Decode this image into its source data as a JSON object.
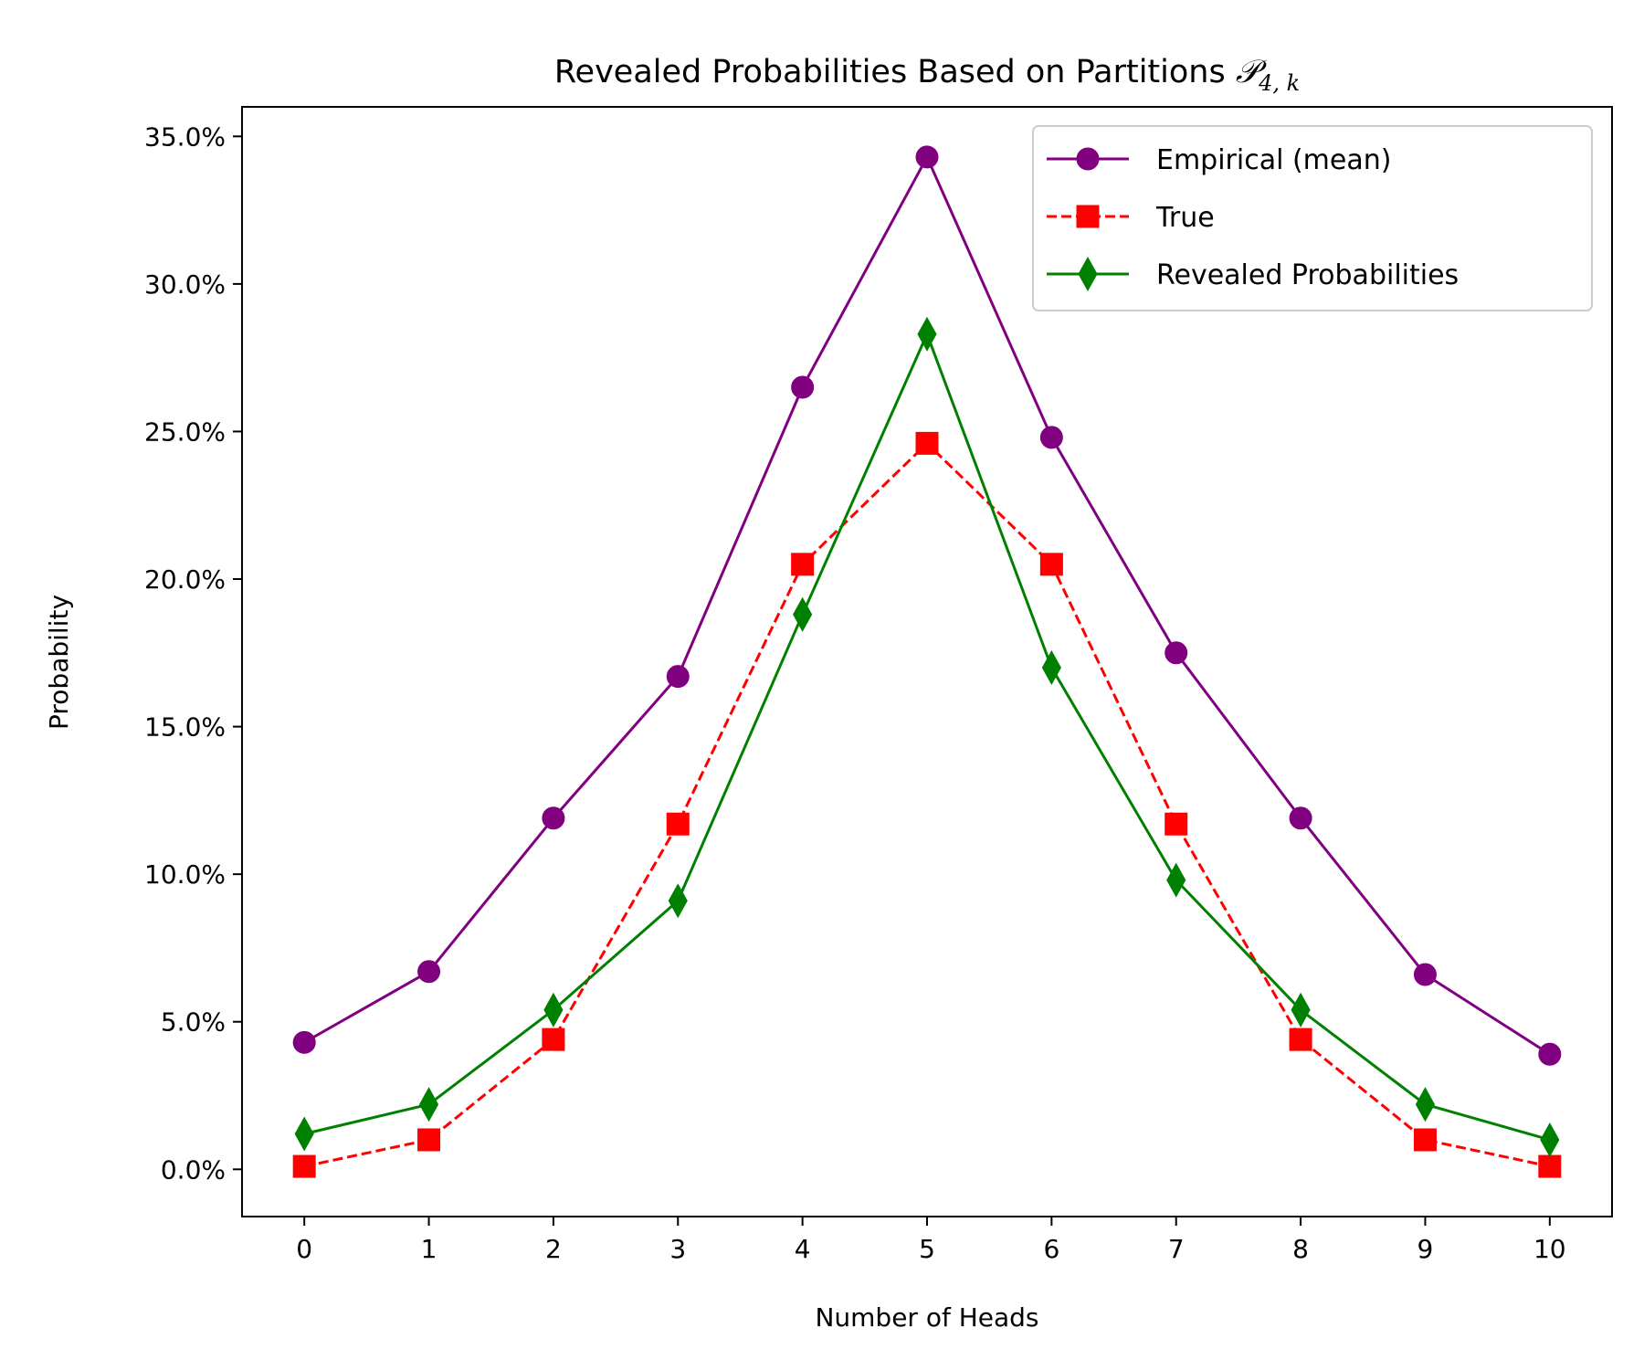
{
  "chart_data": {
    "type": "line",
    "title": "Revealed Probabilities Based on Partitions",
    "title_math": {
      "symbol": "𝒫",
      "subscript": "4, k"
    },
    "xlabel": "Number of Heads",
    "ylabel": "Probability",
    "x": [
      0,
      1,
      2,
      3,
      4,
      5,
      6,
      7,
      8,
      9,
      10
    ],
    "xticks": [
      "0",
      "1",
      "2",
      "3",
      "4",
      "5",
      "6",
      "7",
      "8",
      "9",
      "10"
    ],
    "xlim": [
      -0.5,
      10.5
    ],
    "yticks": [
      0,
      5,
      10,
      15,
      20,
      25,
      30,
      35
    ],
    "ytick_labels": [
      "0.0%",
      "5.0%",
      "10.0%",
      "15.0%",
      "20.0%",
      "25.0%",
      "30.0%",
      "35.0%"
    ],
    "ylim": [
      -1.6,
      36.0
    ],
    "y_unit": "%",
    "grid": false,
    "legend_position": "top-right",
    "series": [
      {
        "name": "Empirical (mean)",
        "color": "#800080",
        "linestyle": "solid",
        "marker": "circle",
        "values": [
          4.3,
          6.7,
          11.9,
          16.7,
          26.5,
          34.3,
          24.8,
          17.5,
          11.9,
          6.6,
          3.9
        ]
      },
      {
        "name": "True",
        "color": "#ff0000",
        "linestyle": "dashed",
        "marker": "square",
        "values": [
          0.1,
          1.0,
          4.4,
          11.7,
          20.5,
          24.6,
          20.5,
          11.7,
          4.4,
          1.0,
          0.1
        ]
      },
      {
        "name": "Revealed Probabilities",
        "color": "#008000",
        "linestyle": "solid",
        "marker": "diamond",
        "values": [
          1.2,
          2.2,
          5.4,
          9.1,
          18.8,
          28.3,
          17.0,
          9.8,
          5.4,
          2.2,
          1.0
        ]
      }
    ]
  }
}
